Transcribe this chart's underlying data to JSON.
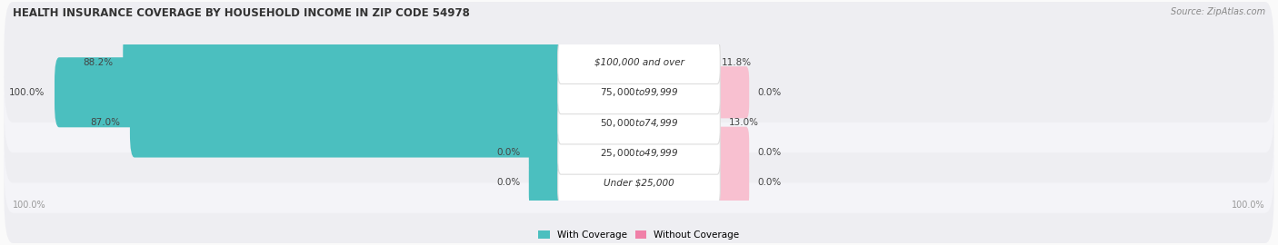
{
  "title": "HEALTH INSURANCE COVERAGE BY HOUSEHOLD INCOME IN ZIP CODE 54978",
  "source": "Source: ZipAtlas.com",
  "categories": [
    "Under $25,000",
    "$25,000 to $49,999",
    "$50,000 to $74,999",
    "$75,000 to $99,999",
    "$100,000 and over"
  ],
  "with_coverage": [
    0.0,
    0.0,
    87.0,
    100.0,
    88.2
  ],
  "without_coverage": [
    0.0,
    0.0,
    13.0,
    0.0,
    11.8
  ],
  "color_with": "#4BBFBF",
  "color_without": "#F080A8",
  "color_without_light": "#F8C0D0",
  "row_colors": [
    "#EEEEF2",
    "#F4F4F8",
    "#EEEEF2",
    "#F4F4F8",
    "#EEEEF2"
  ],
  "title_fontsize": 8.5,
  "label_fontsize": 7.5,
  "tick_fontsize": 7,
  "legend_fontsize": 7.5,
  "source_fontsize": 7,
  "pct_fontsize": 7.5
}
